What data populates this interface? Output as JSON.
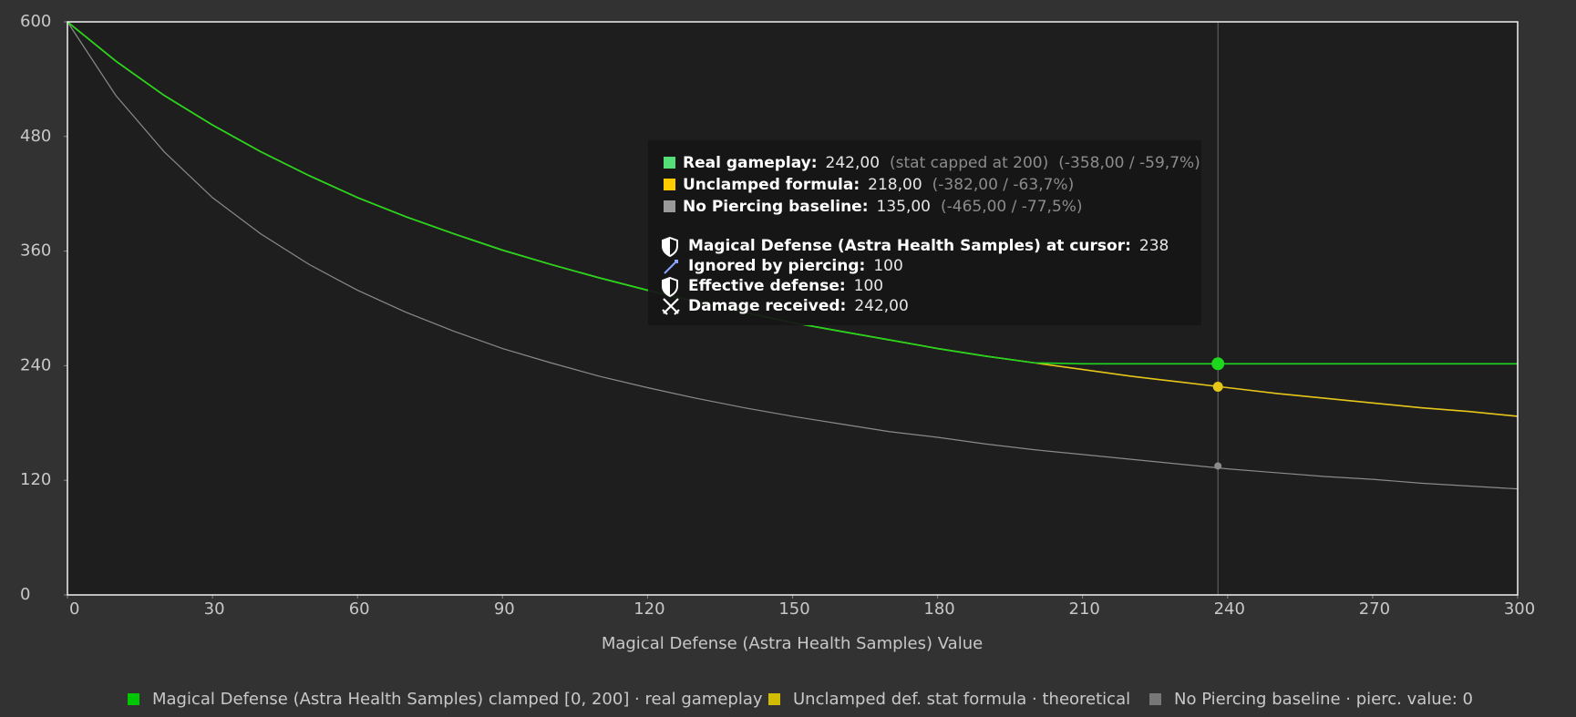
{
  "chart_data": {
    "type": "line",
    "x_label": "Magical Defense (Astra Health Samples) Value",
    "x": [
      0,
      10,
      20,
      30,
      40,
      50,
      60,
      70,
      80,
      90,
      100,
      110,
      120,
      130,
      140,
      150,
      160,
      170,
      180,
      190,
      200,
      210,
      220,
      230,
      240,
      250,
      260,
      270,
      280,
      290,
      300
    ],
    "xlim": [
      0,
      300
    ],
    "xticks": [
      0,
      30,
      60,
      90,
      120,
      150,
      180,
      210,
      240,
      270,
      300
    ],
    "ylim": [
      0,
      600
    ],
    "yticks": [
      0,
      120,
      240,
      360,
      480,
      600
    ],
    "legend": "bottom",
    "series": [
      {
        "name": "Magical Defense (Astra Health Samples)  clamped [0, 200] · real gameplay",
        "color": "#1ed81e",
        "values": [
          600,
          559,
          523,
          492,
          464,
          439,
          416,
          396,
          378,
          361,
          346,
          332,
          319,
          307,
          296,
          285,
          276,
          267,
          258,
          250,
          243,
          242,
          242,
          242,
          242,
          242,
          242,
          242,
          242,
          242,
          242
        ]
      },
      {
        "name": "Unclamped def. stat formula · theoretical",
        "color": "#e6c619",
        "values": [
          600,
          559,
          523,
          492,
          464,
          439,
          416,
          396,
          378,
          361,
          346,
          332,
          319,
          307,
          296,
          285,
          276,
          267,
          258,
          250,
          243,
          236,
          229,
          223,
          217,
          211,
          206,
          201,
          196,
          192,
          187
        ]
      },
      {
        "name": "No Piercing baseline · pierc. value: 0",
        "color": "#8a8a8a",
        "values": [
          600,
          523,
          464,
          416,
          378,
          346,
          319,
          296,
          276,
          258,
          243,
          229,
          217,
          206,
          196,
          187,
          179,
          171,
          165,
          158,
          152,
          147,
          142,
          137,
          132,
          128,
          124,
          121,
          117,
          114,
          111
        ]
      }
    ],
    "cursor": {
      "x": 238,
      "values": [
        242,
        218,
        135
      ]
    },
    "tooltip": {
      "rows": [
        {
          "label": "Real gameplay:",
          "value": "242,00",
          "note": "(stat capped at 200)",
          "delta": "(-358,00 / -59,7%)"
        },
        {
          "label": "Unclamped formula:",
          "value": "218,00",
          "delta": "(-382,00 / -63,7%)"
        },
        {
          "label": "No Piercing baseline:",
          "value": "135,00",
          "delta": "(-465,00 / -77,5%)"
        }
      ],
      "details": [
        {
          "label": "Magical Defense (Astra Health Samples) at cursor:",
          "value": "238"
        },
        {
          "label": "Ignored by piercing:",
          "value": "100"
        },
        {
          "label": "Effective defense:",
          "value": "100"
        },
        {
          "label": "Damage received:",
          "value": "242,00"
        }
      ]
    }
  }
}
